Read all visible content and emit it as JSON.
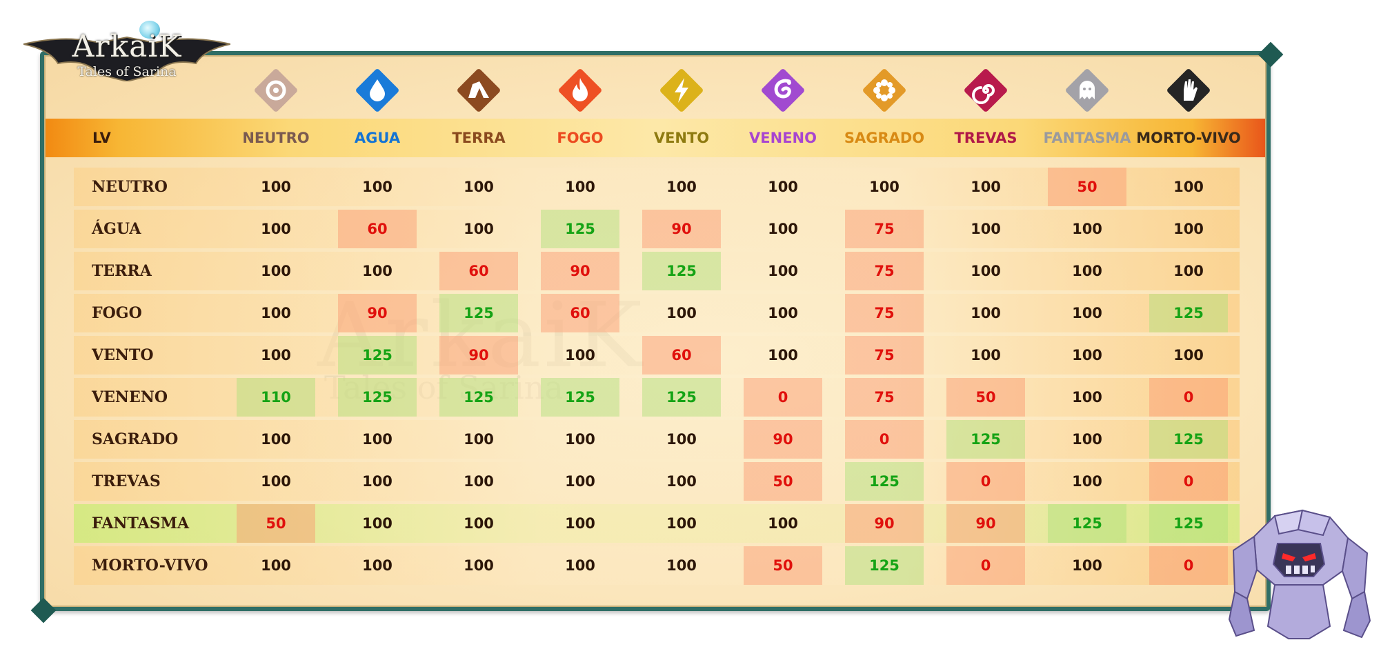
{
  "logo": {
    "title": "ArkaiK",
    "subtitle": "Tales of Sarina"
  },
  "watermark": {
    "title": "ArkaiK",
    "subtitle": "Tales of Sarina"
  },
  "header": {
    "lv_label": "LV",
    "columns": [
      {
        "label": "NEUTRO",
        "color": "#7a5a50",
        "icon": "neutral-ring-icon",
        "icon_bg": "#c9a99a"
      },
      {
        "label": "AGUA",
        "color": "#1474d4",
        "icon": "water-drop-icon",
        "icon_bg": "#1a7bd9"
      },
      {
        "label": "TERRA",
        "color": "#8a4a1e",
        "icon": "earth-rock-icon",
        "icon_bg": "#8c4a20"
      },
      {
        "label": "FOGO",
        "color": "#ec4b20",
        "icon": "fire-flame-icon",
        "icon_bg": "#ee5024"
      },
      {
        "label": "VENTO",
        "color": "#8e7a10",
        "icon": "lightning-bolt-icon",
        "icon_bg": "#dcb21a"
      },
      {
        "label": "VENENO",
        "color": "#a845d0",
        "icon": "poison-serpent-icon",
        "icon_bg": "#a14ad0"
      },
      {
        "label": "SAGRADO",
        "color": "#d88a14",
        "icon": "holy-flower-icon",
        "icon_bg": "#e39a28"
      },
      {
        "label": "TREVAS",
        "color": "#b01848",
        "icon": "darkness-spiral-icon",
        "icon_bg": "#b81a4c"
      },
      {
        "label": "FANTASMA",
        "color": "#9a9a9e",
        "icon": "ghost-icon",
        "icon_bg": "#a3a2a8"
      },
      {
        "label": "MORTO-VIVO",
        "color": "#3a2a1a",
        "icon": "undead-hand-icon",
        "icon_bg": "#252525"
      }
    ]
  },
  "rows": [
    {
      "label": "NEUTRO",
      "values": [
        "100",
        "100",
        "100",
        "100",
        "100",
        "100",
        "100",
        "100",
        "50",
        "100"
      ]
    },
    {
      "label": "ÁGUA",
      "values": [
        "100",
        "60",
        "100",
        "125",
        "90",
        "100",
        "75",
        "100",
        "100",
        "100"
      ]
    },
    {
      "label": "TERRA",
      "values": [
        "100",
        "100",
        "60",
        "90",
        "125",
        "100",
        "75",
        "100",
        "100",
        "100"
      ]
    },
    {
      "label": "FOGO",
      "values": [
        "100",
        "90",
        "125",
        "60",
        "100",
        "100",
        "75",
        "100",
        "100",
        "125"
      ]
    },
    {
      "label": "VENTO",
      "values": [
        "100",
        "125",
        "90",
        "100",
        "60",
        "100",
        "75",
        "100",
        "100",
        "100"
      ]
    },
    {
      "label": "VENENO",
      "values": [
        "110",
        "125",
        "125",
        "125",
        "125",
        "0",
        "75",
        "50",
        "100",
        "0"
      ]
    },
    {
      "label": "SAGRADO",
      "values": [
        "100",
        "100",
        "100",
        "100",
        "100",
        "90",
        "0",
        "125",
        "100",
        "125"
      ]
    },
    {
      "label": "TREVAS",
      "values": [
        "100",
        "100",
        "100",
        "100",
        "100",
        "50",
        "125",
        "0",
        "100",
        "0"
      ]
    },
    {
      "label": "FANTASMA",
      "values": [
        "50",
        "100",
        "100",
        "100",
        "100",
        "100",
        "90",
        "90",
        "125",
        "125"
      ]
    },
    {
      "label": "MORTO-VIVO",
      "values": [
        "100",
        "100",
        "100",
        "100",
        "100",
        "50",
        "125",
        "0",
        "100",
        "0"
      ]
    }
  ],
  "colors": {
    "low": "#e0100c",
    "high": "#15a315",
    "neutral": "#2c1608",
    "frame": "#2f6e66"
  }
}
